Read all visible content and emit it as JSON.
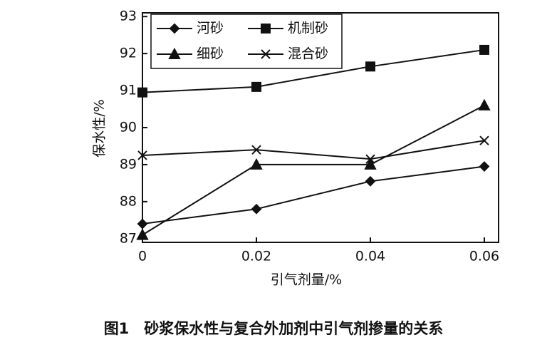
{
  "chart_data": {
    "type": "line",
    "x_label": "引气剂量/%",
    "y_label": "保水性/%",
    "caption": "图1　砂浆保水性与复合外加剂中引气剂掺量的关系",
    "x": [
      0,
      0.02,
      0.04,
      0.06
    ],
    "series": [
      {
        "name": "河砂",
        "color": "#111111",
        "marker": "diamond",
        "values": [
          87.4,
          87.8,
          88.55,
          88.95
        ]
      },
      {
        "name": "机制砂",
        "color": "#111111",
        "marker": "square",
        "values": [
          90.95,
          91.1,
          91.65,
          92.1
        ]
      },
      {
        "name": "细砂",
        "color": "#111111",
        "marker": "triangle",
        "values": [
          87.1,
          89.0,
          89.0,
          90.6
        ]
      },
      {
        "name": "混合砂",
        "color": "#111111",
        "marker": "cross",
        "values": [
          89.25,
          89.4,
          89.15,
          89.65
        ]
      }
    ],
    "xlim": [
      0,
      0.0625
    ],
    "ylim": [
      86.9,
      93.1
    ],
    "xticks": [
      0,
      0.02,
      0.04,
      0.06
    ],
    "yticks": [
      87,
      88,
      89,
      90,
      91,
      92,
      93
    ],
    "legend": "upper left"
  }
}
